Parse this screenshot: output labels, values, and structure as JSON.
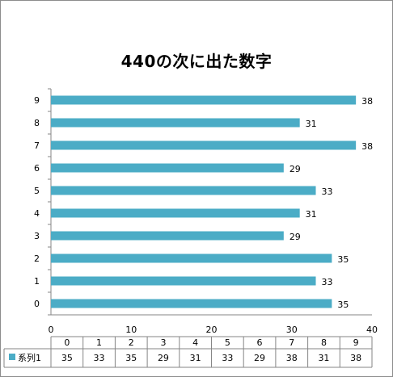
{
  "chart_data": {
    "type": "bar",
    "orientation": "horizontal",
    "title": "440の次に出た数字",
    "categories": [
      "0",
      "1",
      "2",
      "3",
      "4",
      "5",
      "6",
      "7",
      "8",
      "9"
    ],
    "series": [
      {
        "name": "系列1",
        "values": [
          35,
          33,
          35,
          29,
          31,
          33,
          29,
          38,
          31,
          38
        ],
        "color": "#4bacc6"
      }
    ],
    "xlim": [
      0,
      40
    ],
    "xticks": [
      0,
      10,
      20,
      30,
      40
    ],
    "xlabel": "",
    "ylabel": "",
    "grid": false,
    "data_labels": true,
    "data_table": true,
    "legend_placement": "data-table"
  }
}
